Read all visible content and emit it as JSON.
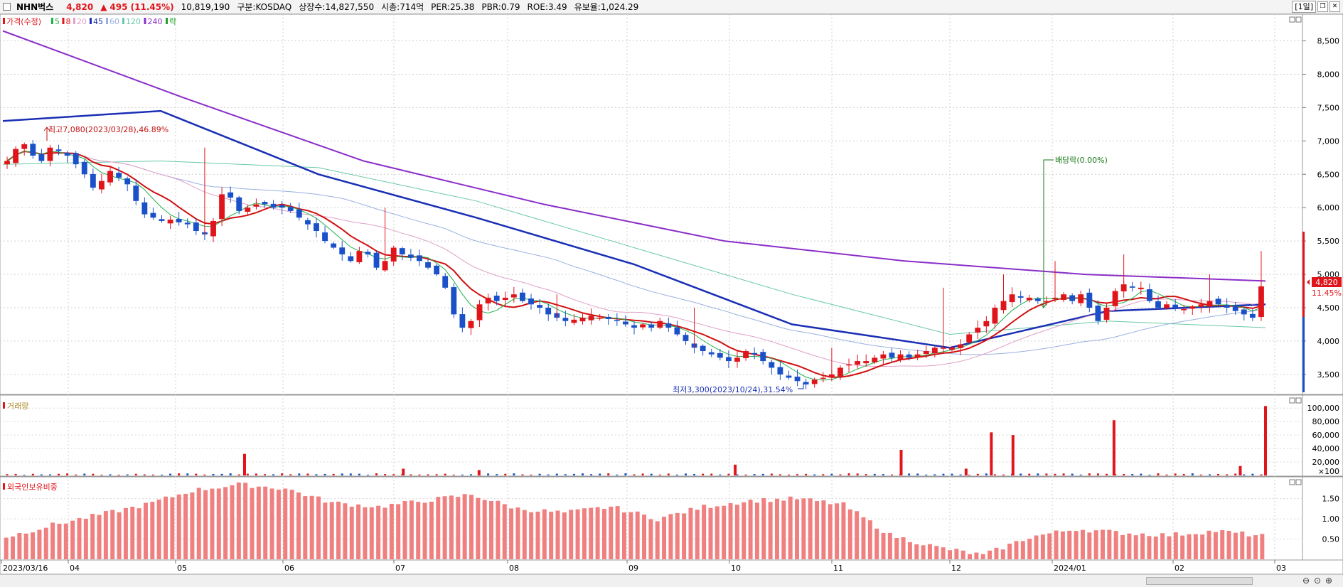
{
  "header": {
    "stock_name": "NHN벅스",
    "price": "4,820",
    "change": "495 (11.45%)",
    "volume": "10,819,190",
    "market": "구분:KOSDAQ",
    "shares": "상장수:14,827,550",
    "market_cap": "시총:714억",
    "per": "PER:25.38",
    "pbr": "PBR:0.79",
    "roe": "ROE:3.49",
    "float": "유보율:1,024.29",
    "period_button": "[1일]"
  },
  "price_panel": {
    "legend": [
      {
        "label": "가격(수정)",
        "color": "#e0151b"
      },
      {
        "label": "5",
        "color": "#22b14c"
      },
      {
        "label": "8",
        "color": "#e0151b"
      },
      {
        "label": "20",
        "color": "#e0a0c8"
      },
      {
        "label": "45",
        "color": "#1a2fb4"
      },
      {
        "label": "60",
        "color": "#9ab0e0"
      },
      {
        "label": "120",
        "color": "#6ac8a8"
      },
      {
        "label": "240",
        "color": "#8a2ec8"
      },
      {
        "label": "락",
        "color": "#22a02c"
      }
    ],
    "y_ticks": [
      "8,500",
      "8,000",
      "7,500",
      "7,000",
      "6,500",
      "6,000",
      "5,500",
      "5,000",
      "4,500",
      "4,000",
      "3,500"
    ],
    "annotations": {
      "high": "최고7,080(2023/03/28),46.89%",
      "low": "최저3,300(2023/10/24),31.54%",
      "dividend": "배당락(0.00%)"
    },
    "current_price_tag": "4,820",
    "current_change_tag": "11.45%"
  },
  "volume_panel": {
    "title": "거래량",
    "y_ticks": [
      "100,000",
      "80,000",
      "60,000",
      "40,000",
      "20,000",
      "×100"
    ]
  },
  "foreign_panel": {
    "title": "외국인보유비중",
    "y_ticks": [
      "1.50",
      "1.00",
      "0.50"
    ]
  },
  "x_axis": {
    "labels": [
      "2023/03/16",
      "04",
      "05",
      "06",
      "07",
      "08",
      "09",
      "10",
      "11",
      "12",
      "2024/01",
      "02",
      "03"
    ]
  },
  "chart_data": {
    "type": "candlestick",
    "x_start": "2023/03/16",
    "x_end": "2024/02/29",
    "ylim": [
      3200,
      8900
    ],
    "close_series": [
      6700,
      6880,
      6950,
      6780,
      6700,
      6900,
      6850,
      6780,
      6650,
      6500,
      6300,
      6400,
      6550,
      6450,
      6350,
      6100,
      5900,
      5850,
      5800,
      5820,
      5780,
      5750,
      5650,
      5600,
      5800,
      6200,
      6150,
      5950,
      6000,
      6050,
      6050,
      6000,
      6000,
      5950,
      5850,
      5750,
      5650,
      5500,
      5400,
      5300,
      5200,
      5350,
      5300,
      5100,
      5200,
      5400,
      5300,
      5250,
      5200,
      5100,
      5000,
      4800,
      4400,
      4200,
      4300,
      4550,
      4650,
      4600,
      4650,
      4700,
      4600,
      4550,
      4500,
      4400,
      4350,
      4300,
      4320,
      4350,
      4380,
      4350,
      4330,
      4300,
      4250,
      4200,
      4250,
      4200,
      4300,
      4200,
      4100,
      4000,
      3900,
      3850,
      3800,
      3750,
      3700,
      3750,
      3850,
      3800,
      3700,
      3600,
      3500,
      3450,
      3400,
      3350,
      3420,
      3450,
      3500,
      3600,
      3650,
      3700,
      3700,
      3750,
      3800,
      3750,
      3800,
      3750,
      3800,
      3850,
      3900,
      3900,
      3900,
      3950,
      4100,
      4200,
      4300,
      4500,
      4600,
      4700,
      4650,
      4650,
      4600,
      4600,
      4650,
      4700,
      4600,
      4700,
      4500,
      4300,
      4500,
      4750,
      4850,
      4800,
      4800,
      4600,
      4500,
      4550,
      4500,
      4480,
      4520,
      4550,
      4600,
      4550,
      4500,
      4450,
      4400,
      4350,
      4820
    ],
    "ma240": [
      8650,
      7650,
      6700,
      6050,
      5500,
      5200,
      5000,
      4900
    ],
    "ma45": [
      7300,
      7450,
      6500,
      5850,
      5150,
      4250,
      3900,
      4450,
      4550
    ],
    "ma120": [
      6650,
      6700,
      6600,
      6100,
      5400,
      4700,
      4100,
      4300,
      4200
    ],
    "volume_spikes": [
      {
        "date": "2023/05/22",
        "value": 32000
      },
      {
        "date": "2023/07/05",
        "value": 10000
      },
      {
        "date": "2023/07/26",
        "value": 8000
      },
      {
        "date": "2023/10/05",
        "value": 16000
      },
      {
        "date": "2023/11/20",
        "value": 38000
      },
      {
        "date": "2023/12/08",
        "value": 10000
      },
      {
        "date": "2023/12/15",
        "value": 64000
      },
      {
        "date": "2023/12/21",
        "value": 60000
      },
      {
        "date": "2024/01/18",
        "value": 82000
      },
      {
        "date": "2024/02/22",
        "value": 14000
      },
      {
        "date": "2024/02/29",
        "value": 103000
      }
    ],
    "foreign_ratio": [
      0.55,
      0.85,
      1.1,
      1.35,
      1.7,
      1.85,
      1.75,
      1.4,
      1.3,
      1.45,
      1.6,
      1.25,
      1.15,
      1.3,
      1.0,
      1.3,
      1.45,
      1.5,
      1.35,
      0.6,
      0.3,
      0.1,
      0.55,
      0.75,
      0.65,
      0.6,
      0.7,
      0.58
    ]
  }
}
